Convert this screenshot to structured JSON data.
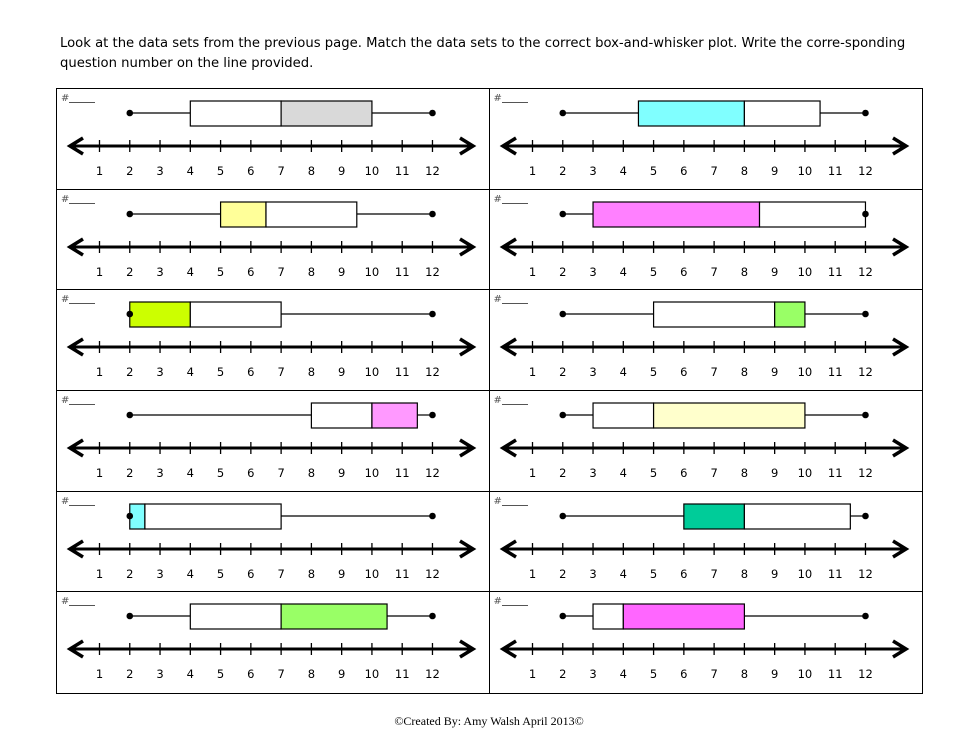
{
  "instructions": "Look at the data sets from the previous page.  Match the data sets to the correct box-and-whisker plot.  Write the corre-sponding question number on the line provided.",
  "answer_prefix": "#",
  "axis_ticks": [
    1,
    2,
    3,
    4,
    5,
    6,
    7,
    8,
    9,
    10,
    11,
    12
  ],
  "plots": [
    {
      "min": 2,
      "q1": 4,
      "median": 7,
      "q3": 10,
      "max": 12,
      "fill": "#d9d9d9",
      "fill_half": "upper"
    },
    {
      "min": 2,
      "q1": 4.5,
      "median": 8,
      "q3": 10.5,
      "max": 12,
      "fill": "#80ffff",
      "fill_half": "lower"
    },
    {
      "min": 2,
      "q1": 5,
      "median": 6.5,
      "q3": 9.5,
      "max": 12,
      "fill": "#ffff99",
      "fill_half": "lower"
    },
    {
      "min": 2,
      "q1": 3,
      "median": 8.5,
      "q3": 12,
      "max": 12,
      "fill": "#ff80ff",
      "fill_half": "lower"
    },
    {
      "min": 2,
      "q1": 2,
      "median": 4,
      "q3": 7,
      "max": 12,
      "fill": "#ccff00",
      "fill_half": "lower"
    },
    {
      "min": 2,
      "q1": 5,
      "median": 9,
      "q3": 10,
      "max": 12,
      "fill": "#99ff66",
      "fill_half": "upper"
    },
    {
      "min": 2,
      "q1": 8,
      "median": 10,
      "q3": 11.5,
      "max": 12,
      "fill": "#ff99ff",
      "fill_half": "upper"
    },
    {
      "min": 2,
      "q1": 3,
      "median": 5,
      "q3": 10,
      "max": 12,
      "fill": "#ffffcc",
      "fill_half": "upper"
    },
    {
      "min": 2,
      "q1": 2,
      "median": 2.5,
      "q3": 7,
      "max": 12,
      "fill": "#80ffff",
      "fill_half": "lower"
    },
    {
      "min": 2,
      "q1": 6,
      "median": 8,
      "q3": 11.5,
      "max": 12,
      "fill": "#00cc99",
      "fill_half": "lower"
    },
    {
      "min": 2,
      "q1": 4,
      "median": 7,
      "q3": 10.5,
      "max": 12,
      "fill": "#99ff66",
      "fill_half": "upper"
    },
    {
      "min": 2,
      "q1": 3,
      "median": 4,
      "q3": 8,
      "max": 12,
      "fill": "#ff66ff",
      "fill_half": "upper"
    }
  ],
  "footer": "©Created By: Amy Walsh April 2013©"
}
